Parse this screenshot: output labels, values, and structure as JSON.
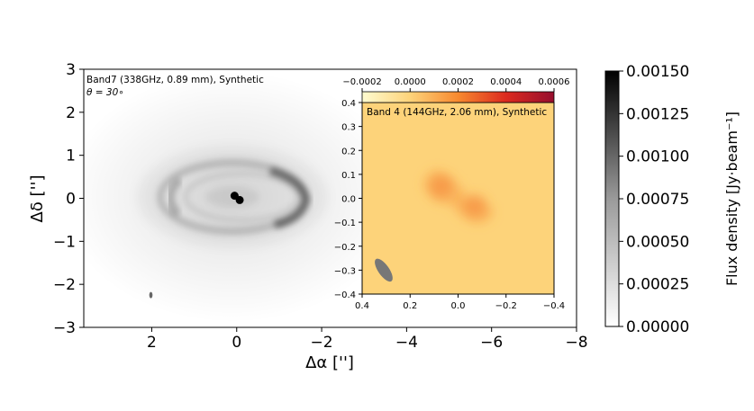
{
  "chart_data": [
    {
      "type": "heatmap",
      "panel": "main",
      "annotation_line1": "Band7 (338GHz, 0.89 mm), Synthetic",
      "annotation_line2": "θ = 30∘",
      "xlabel": "Δα ['']",
      "ylabel": "Δδ ['']",
      "xlim": [
        3.6,
        -8.0
      ],
      "ylim": [
        -3.0,
        3.0
      ],
      "x_ticks": [
        2,
        0,
        -2,
        -4,
        -6,
        -8
      ],
      "x_tick_labels": [
        "2",
        "0",
        "−2",
        "−4",
        "−6",
        "−8"
      ],
      "y_ticks": [
        3,
        2,
        1,
        0,
        -1,
        -2,
        -3
      ],
      "y_tick_labels": [
        "3",
        "2",
        "1",
        "0",
        "−1",
        "−2",
        "−3"
      ],
      "sources": [
        {
          "x": 0.05,
          "y": 0.06
        },
        {
          "x": -0.07,
          "y": -0.04
        }
      ],
      "beam": {
        "x": 2.02,
        "y": -2.25
      }
    },
    {
      "type": "heatmap",
      "panel": "inset",
      "annotation": "Band 4 (144GHz, 2.06 mm), Synthetic",
      "xlim": [
        0.4,
        -0.4
      ],
      "ylim": [
        -0.4,
        0.4
      ],
      "x_ticks": [
        0.4,
        0.2,
        0.0,
        -0.2,
        -0.4
      ],
      "x_tick_labels": [
        "0.4",
        "0.2",
        "0.0",
        "−0.2",
        "−0.4"
      ],
      "y_ticks": [
        0.4,
        0.3,
        0.2,
        0.1,
        0.0,
        -0.1,
        -0.2,
        -0.3,
        -0.4
      ],
      "y_tick_labels": [
        "0.4",
        "0.3",
        "0.2",
        "0.1",
        "0.0",
        "−0.1",
        "−0.2",
        "−0.3",
        "−0.4"
      ],
      "sources": [
        {
          "x": 0.07,
          "y": 0.05
        },
        {
          "x": -0.07,
          "y": -0.03
        }
      ],
      "beam": {
        "x": 0.31,
        "y": -0.3
      },
      "colorbar": {
        "range": [
          -0.0002,
          0.0006
        ],
        "ticks": [
          -0.0002,
          0.0,
          0.0002,
          0.0004,
          0.0006
        ],
        "tick_labels": [
          "−0.0002",
          "0.0000",
          "0.0002",
          "0.0004",
          "0.0006"
        ],
        "colormap_stops": [
          "#fffbd0",
          "#fdd37a",
          "#f7892f",
          "#dc2a1f",
          "#960e2e"
        ]
      }
    },
    {
      "type": "colorbar",
      "label": "Flux density [Jy·beam⁻¹]",
      "range": [
        0.0,
        0.0015
      ],
      "ticks": [
        0.0,
        0.00025,
        0.0005,
        0.00075,
        0.001,
        0.00125,
        0.0015
      ],
      "tick_labels": [
        "0.00000",
        "0.00025",
        "0.00050",
        "0.00075",
        "0.00100",
        "0.00125",
        "0.00150"
      ],
      "colormap": "Greys"
    }
  ]
}
